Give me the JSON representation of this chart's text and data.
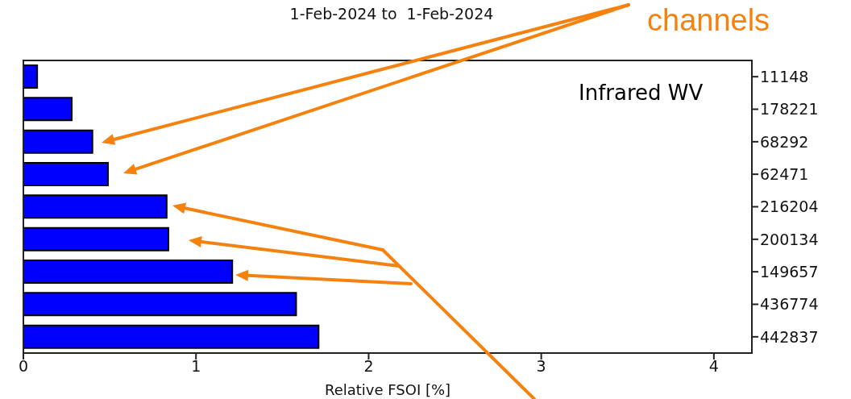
{
  "chart_data": {
    "type": "bar",
    "orientation": "horizontal",
    "title": "1-Feb-2024 to  1-Feb-2024",
    "xlabel": "Relative FSOI [%]",
    "categories": [
      "11148",
      "178221",
      "68292",
      "62471",
      "216204",
      "200134",
      "149657",
      "436774",
      "442837"
    ],
    "values": [
      0.08,
      0.28,
      0.4,
      0.49,
      0.83,
      0.84,
      1.21,
      1.58,
      1.71
    ],
    "color": "#0000ff",
    "xlim": [
      0,
      4.22
    ],
    "xticks": [
      0,
      1,
      2,
      3,
      4
    ],
    "annotations": [
      "Infrared WV",
      "channels"
    ]
  }
}
